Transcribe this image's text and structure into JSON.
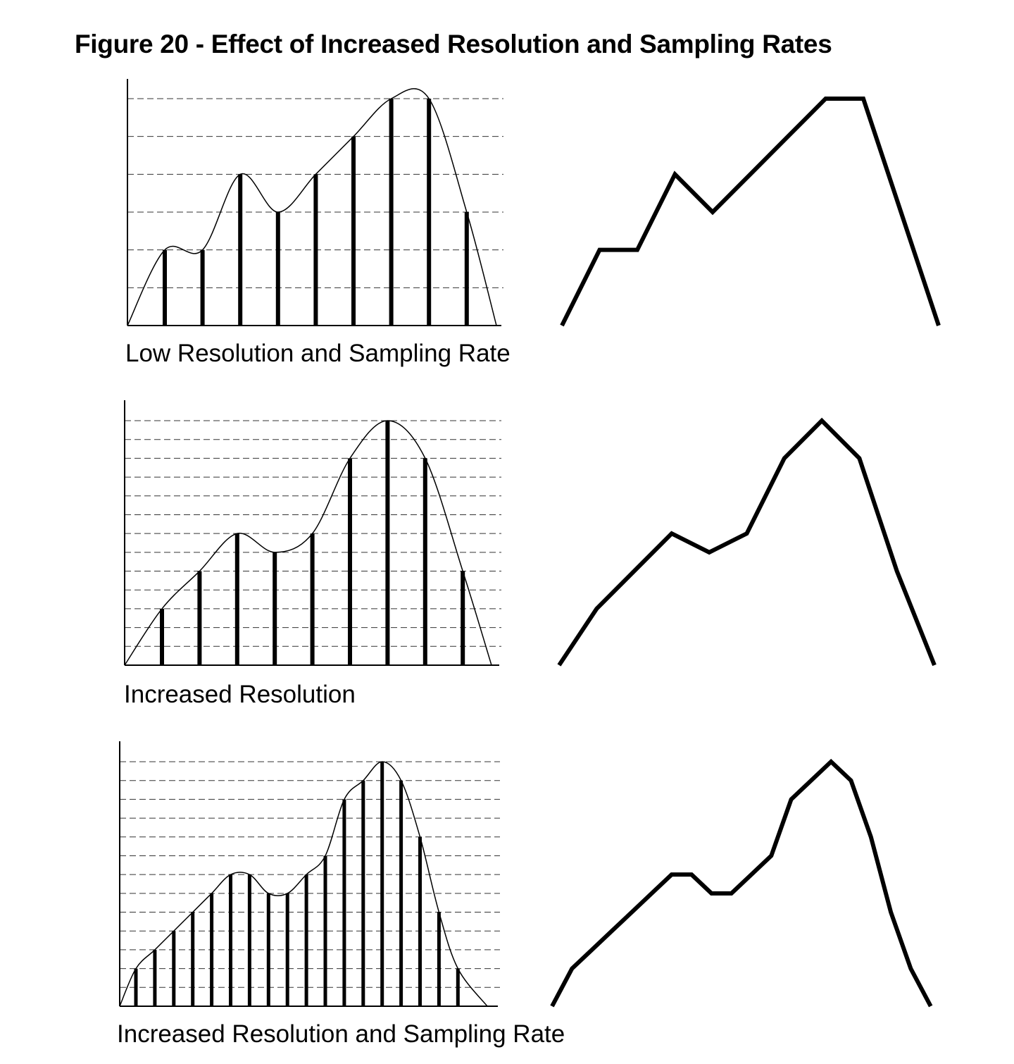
{
  "figure": {
    "title": "Figure 20 - Effect of Increased Resolution and Sampling Rates"
  },
  "chart_data": [
    {
      "type": "bar",
      "caption": "Low Resolution and Sampling Rate",
      "quantization_levels": 6,
      "samples": [
        2,
        2,
        4,
        3,
        4,
        5,
        6,
        6,
        3
      ],
      "reconstruction": "line"
    },
    {
      "type": "bar",
      "caption": "Increased Resolution",
      "quantization_levels": 13,
      "samples": [
        3,
        5,
        7,
        6,
        7,
        11,
        13,
        11,
        5
      ],
      "reconstruction": "line"
    },
    {
      "type": "bar",
      "caption": "Increased Resolution and Sampling Rate",
      "quantization_levels": 13,
      "samples": [
        2,
        3,
        4,
        5,
        6,
        7,
        7,
        6,
        6,
        7,
        8,
        11,
        12,
        13,
        12,
        9,
        5,
        2
      ],
      "reconstruction": "line"
    }
  ]
}
